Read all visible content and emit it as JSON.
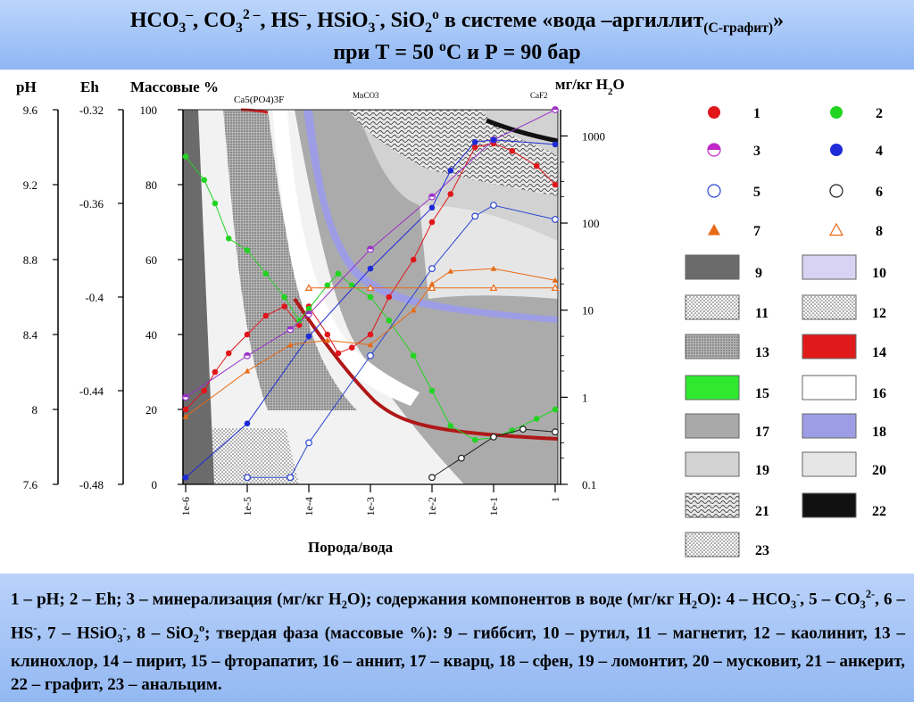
{
  "title": {
    "line1_html": "HCO<sub>3</sub><sup>–</sup>, CO<sub>3</sub><sup>2 –</sup>, HS<sup>–</sup>, HSiO<sub>3</sub><sup>-</sup>, SiO<sub>2</sub><sup>o</sup> в системе «вода –аргиллит<sub>(С-графит)</sub>»",
    "line2_html": "при Т = 50 <sup>о</sup>С  и  Р = 90 бар"
  },
  "footer": {
    "caption_html": "1 – pH; 2 – Eh; 3 – минерализация (мг/кг H<sub>2</sub>O); содержания компонентов в воде (мг/кг H<sub>2</sub>O): 4 – HCO<sub>3</sub><sup>-</sup>, 5 – CO<sub>3</sub><sup>2-</sup>, 6 – HS<sup>-</sup>, 7 – HSiO<sub>3</sub><sup>-</sup>, 8 – SiO<sub>2</sub><sup>o</sup>; твердая фаза (массовые %): 9 – гиббсит,   10 – рутил,   11 – магнетит,   12 – каолинит,  13 – клинохлор, 14 – пирит,    15 – фторапатит,   16 – аннит,  17 – кварц,   18 –  сфен, 19 – ломонтит, 20 – мусковит,  21 –  анкерит, 22 – графит,  23 – анальцим."
  },
  "chart_data": {
    "type": "line",
    "xlabel": "Порода/вода",
    "x_scale": "log",
    "xlim": [
      1e-06,
      1
    ],
    "x_ticks": [
      "1e-6",
      "1e-5",
      "1e-4",
      "1e-3",
      "1e-2",
      "1e-1",
      "1"
    ],
    "axes": {
      "ph": {
        "label": "pH",
        "range": [
          7.6,
          9.6
        ],
        "ticks": [
          "9.6",
          "9.2",
          "8.8",
          "8.4",
          "8",
          "7.6"
        ]
      },
      "eh": {
        "label": "Eh",
        "range": [
          -0.48,
          -0.32
        ],
        "ticks": [
          "-0.32",
          "-0.36",
          "-0.4",
          "-0.44",
          "-0.48"
        ]
      },
      "mass": {
        "label": "Массовые %",
        "range": [
          0,
          100
        ],
        "ticks": [
          "100",
          "80",
          "60",
          "40",
          "20",
          "0"
        ]
      },
      "mg": {
        "label": "мг/кг H2O",
        "scale": "log",
        "range": [
          0.1,
          2000
        ],
        "ticks": [
          "1000",
          "100",
          "10",
          "1",
          "0.1"
        ]
      }
    },
    "annotations": [
      "Ca5(PO4)3F",
      "MnCO3",
      "CaF2"
    ],
    "series": [
      {
        "name": "1",
        "axis": "ph",
        "color": "#e0161a",
        "marker": "filled-circle",
        "x": [
          1e-06,
          2e-06,
          3e-06,
          5e-06,
          1e-05,
          2e-05,
          4e-05,
          7e-05,
          0.0001,
          0.0002,
          0.0003,
          0.0005,
          0.001,
          0.002,
          0.005,
          0.01,
          0.02,
          0.05,
          0.1,
          0.2,
          0.5,
          1
        ],
        "y": [
          8.0,
          8.1,
          8.2,
          8.3,
          8.4,
          8.5,
          8.55,
          8.45,
          8.55,
          8.4,
          8.3,
          8.33,
          8.4,
          8.6,
          8.8,
          9.0,
          9.15,
          9.4,
          9.42,
          9.38,
          9.3,
          9.2
        ]
      },
      {
        "name": "2",
        "axis": "eh",
        "color": "#22d422",
        "marker": "filled-circle",
        "x": [
          1e-06,
          2e-06,
          3e-06,
          5e-06,
          1e-05,
          2e-05,
          4e-05,
          7e-05,
          0.0001,
          0.0002,
          0.0003,
          0.0005,
          0.001,
          0.002,
          0.005,
          0.01,
          0.02,
          0.05,
          0.1,
          0.2,
          0.5,
          1
        ],
        "y": [
          -0.34,
          -0.35,
          -0.36,
          -0.375,
          -0.38,
          -0.39,
          -0.4,
          -0.41,
          -0.405,
          -0.395,
          -0.39,
          -0.395,
          -0.4,
          -0.41,
          -0.425,
          -0.44,
          -0.455,
          -0.461,
          -0.46,
          -0.457,
          -0.452,
          -0.448
        ]
      },
      {
        "name": "3",
        "axis": "mg",
        "color": "#9b32c8",
        "marker": "half-circle",
        "x": [
          1e-06,
          1e-05,
          5e-05,
          0.0001,
          0.001,
          0.01,
          0.1,
          1
        ],
        "y": [
          1.0,
          3.0,
          6.0,
          9.0,
          50,
          200,
          900,
          2000
        ]
      },
      {
        "name": "4",
        "axis": "mg",
        "color": "#1f2bd6",
        "marker": "filled-circle",
        "x": [
          1e-06,
          1e-05,
          0.0001,
          0.001,
          0.01,
          0.02,
          0.05,
          0.1,
          1
        ],
        "y": [
          0.12,
          0.5,
          5.0,
          30,
          150,
          400,
          850,
          900,
          800
        ]
      },
      {
        "name": "5",
        "axis": "mg",
        "color": "#2c46d2",
        "marker": "open-circle",
        "x": [
          1e-05,
          5e-05,
          0.0001,
          0.001,
          0.01,
          0.05,
          0.1,
          1
        ],
        "y": [
          0.12,
          0.12,
          0.3,
          3.0,
          30,
          120,
          160,
          110
        ]
      },
      {
        "name": "6",
        "axis": "mg",
        "color": "#202020",
        "marker": "open-circle",
        "x": [
          0.01,
          0.03,
          0.1,
          0.3,
          1
        ],
        "y": [
          0.12,
          0.2,
          0.35,
          0.43,
          0.4
        ]
      },
      {
        "name": "7",
        "axis": "mg",
        "color": "#e86a16",
        "marker": "filled-triangle",
        "x": [
          1e-06,
          1e-05,
          5e-05,
          0.0002,
          0.001,
          0.005,
          0.01,
          0.02,
          0.1,
          1
        ],
        "y": [
          0.6,
          2.0,
          4.0,
          4.5,
          4.0,
          10,
          20,
          28,
          30,
          22
        ]
      },
      {
        "name": "8",
        "axis": "mg",
        "color": "#e86a16",
        "marker": "open-triangle",
        "x": [
          0.0001,
          0.001,
          0.01,
          0.1,
          1
        ],
        "y": [
          18,
          18,
          18,
          18,
          18
        ]
      }
    ]
  },
  "legend": {
    "items": [
      {
        "key": "1",
        "kind": "marker",
        "marker": "filled-circle",
        "color": "#e0161a"
      },
      {
        "key": "2",
        "kind": "marker",
        "marker": "filled-circle",
        "color": "#22d422"
      },
      {
        "key": "3",
        "kind": "marker",
        "marker": "half-circle",
        "color": "#c026c8"
      },
      {
        "key": "4",
        "kind": "marker",
        "marker": "filled-circle",
        "color": "#1f2bd6"
      },
      {
        "key": "5",
        "kind": "marker",
        "marker": "open-circle",
        "color": "#2c46d2"
      },
      {
        "key": "6",
        "kind": "marker",
        "marker": "open-circle",
        "color": "#202020"
      },
      {
        "key": "7",
        "kind": "marker",
        "marker": "filled-triangle",
        "color": "#e86a16"
      },
      {
        "key": "8",
        "kind": "marker",
        "marker": "open-triangle",
        "color": "#e86a16"
      },
      {
        "key": "9",
        "kind": "swatch",
        "fill": "#6b6b6b",
        "pattern": "solid"
      },
      {
        "key": "10",
        "kind": "swatch",
        "fill": "#d8d2f3",
        "pattern": "solid"
      },
      {
        "key": "11",
        "kind": "swatch",
        "fill": "#f5f5f5",
        "pattern": "dots"
      },
      {
        "key": "12",
        "kind": "swatch",
        "fill": "#e4e4e4",
        "pattern": "dots"
      },
      {
        "key": "13",
        "kind": "swatch",
        "fill": "#bdbdbd",
        "pattern": "dots"
      },
      {
        "key": "14",
        "kind": "swatch",
        "fill": "#e01a1a",
        "pattern": "solid"
      },
      {
        "key": "15",
        "kind": "swatch",
        "fill": "#2fe82f",
        "pattern": "solid"
      },
      {
        "key": "16",
        "kind": "swatch",
        "fill": "#ffffff",
        "pattern": "solid"
      },
      {
        "key": "17",
        "kind": "swatch",
        "fill": "#a9a9a9",
        "pattern": "solid"
      },
      {
        "key": "18",
        "kind": "swatch",
        "fill": "#9d9de6",
        "pattern": "solid"
      },
      {
        "key": "19",
        "kind": "swatch",
        "fill": "#d2d2d2",
        "pattern": "solid"
      },
      {
        "key": "20",
        "kind": "swatch",
        "fill": "#e6e6e6",
        "pattern": "solid"
      },
      {
        "key": "21",
        "kind": "swatch",
        "fill": "#cfcfcf",
        "pattern": "wave"
      },
      {
        "key": "22",
        "kind": "swatch",
        "fill": "#111111",
        "pattern": "solid"
      },
      {
        "key": "23",
        "kind": "swatch",
        "fill": "#e6e6e6",
        "pattern": "dots"
      }
    ]
  }
}
